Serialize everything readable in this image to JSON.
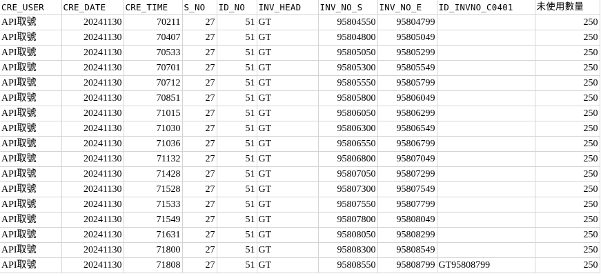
{
  "columns": [
    "CRE_USER",
    "CRE_DATE",
    "CRE_TIME",
    "S_NO",
    "ID_NO",
    "INV_HEAD",
    "INV_NO_S",
    "INV_NO_E",
    "ID_INVNO_C0401",
    "未使用數量"
  ],
  "rows": [
    {
      "user": "API取號",
      "date": "20241130",
      "time": "70211",
      "s_no": "27",
      "id_no": "51",
      "head": "GT",
      "inv_s": "95804550",
      "inv_e": "95804799",
      "id_invno": "",
      "unused": "250"
    },
    {
      "user": "API取號",
      "date": "20241130",
      "time": "70407",
      "s_no": "27",
      "id_no": "51",
      "head": "GT",
      "inv_s": "95804800",
      "inv_e": "95805049",
      "id_invno": "",
      "unused": "250"
    },
    {
      "user": "API取號",
      "date": "20241130",
      "time": "70533",
      "s_no": "27",
      "id_no": "51",
      "head": "GT",
      "inv_s": "95805050",
      "inv_e": "95805299",
      "id_invno": "",
      "unused": "250"
    },
    {
      "user": "API取號",
      "date": "20241130",
      "time": "70701",
      "s_no": "27",
      "id_no": "51",
      "head": "GT",
      "inv_s": "95805300",
      "inv_e": "95805549",
      "id_invno": "",
      "unused": "250"
    },
    {
      "user": "API取號",
      "date": "20241130",
      "time": "70712",
      "s_no": "27",
      "id_no": "51",
      "head": "GT",
      "inv_s": "95805550",
      "inv_e": "95805799",
      "id_invno": "",
      "unused": "250"
    },
    {
      "user": "API取號",
      "date": "20241130",
      "time": "70851",
      "s_no": "27",
      "id_no": "51",
      "head": "GT",
      "inv_s": "95805800",
      "inv_e": "95806049",
      "id_invno": "",
      "unused": "250"
    },
    {
      "user": "API取號",
      "date": "20241130",
      "time": "71015",
      "s_no": "27",
      "id_no": "51",
      "head": "GT",
      "inv_s": "95806050",
      "inv_e": "95806299",
      "id_invno": "",
      "unused": "250"
    },
    {
      "user": "API取號",
      "date": "20241130",
      "time": "71030",
      "s_no": "27",
      "id_no": "51",
      "head": "GT",
      "inv_s": "95806300",
      "inv_e": "95806549",
      "id_invno": "",
      "unused": "250"
    },
    {
      "user": "API取號",
      "date": "20241130",
      "time": "71036",
      "s_no": "27",
      "id_no": "51",
      "head": "GT",
      "inv_s": "95806550",
      "inv_e": "95806799",
      "id_invno": "",
      "unused": "250"
    },
    {
      "user": "API取號",
      "date": "20241130",
      "time": "71132",
      "s_no": "27",
      "id_no": "51",
      "head": "GT",
      "inv_s": "95806800",
      "inv_e": "95807049",
      "id_invno": "",
      "unused": "250"
    },
    {
      "user": "API取號",
      "date": "20241130",
      "time": "71428",
      "s_no": "27",
      "id_no": "51",
      "head": "GT",
      "inv_s": "95807050",
      "inv_e": "95807299",
      "id_invno": "",
      "unused": "250"
    },
    {
      "user": "API取號",
      "date": "20241130",
      "time": "71528",
      "s_no": "27",
      "id_no": "51",
      "head": "GT",
      "inv_s": "95807300",
      "inv_e": "95807549",
      "id_invno": "",
      "unused": "250"
    },
    {
      "user": "API取號",
      "date": "20241130",
      "time": "71533",
      "s_no": "27",
      "id_no": "51",
      "head": "GT",
      "inv_s": "95807550",
      "inv_e": "95807799",
      "id_invno": "",
      "unused": "250"
    },
    {
      "user": "API取號",
      "date": "20241130",
      "time": "71549",
      "s_no": "27",
      "id_no": "51",
      "head": "GT",
      "inv_s": "95807800",
      "inv_e": "95808049",
      "id_invno": "",
      "unused": "250"
    },
    {
      "user": "API取號",
      "date": "20241130",
      "time": "71631",
      "s_no": "27",
      "id_no": "51",
      "head": "GT",
      "inv_s": "95808050",
      "inv_e": "95808299",
      "id_invno": "",
      "unused": "250"
    },
    {
      "user": "API取號",
      "date": "20241130",
      "time": "71800",
      "s_no": "27",
      "id_no": "51",
      "head": "GT",
      "inv_s": "95808300",
      "inv_e": "95808549",
      "id_invno": "",
      "unused": "250"
    },
    {
      "user": "API取號",
      "date": "20241130",
      "time": "71808",
      "s_no": "27",
      "id_no": "51",
      "head": "GT",
      "inv_s": "95808550",
      "inv_e": "95808799",
      "id_invno": "GT95808799",
      "unused": "250"
    }
  ]
}
